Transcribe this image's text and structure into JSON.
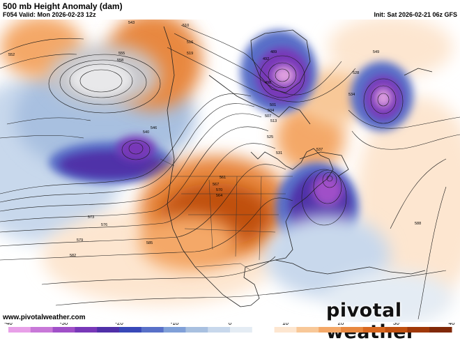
{
  "header": {
    "title": "500 mb Height Anomaly (dam)",
    "valid": "F054 Valid: Mon 2026-02-23 12z",
    "init": "Init: Sat 2026-02-21 06z GFS"
  },
  "footer": {
    "website": "www.pivotalweather.com",
    "brand": "pivotal weather"
  },
  "colorbar": {
    "ticks": [
      "-40",
      "-30",
      "-20",
      "-10",
      "0",
      "10",
      "20",
      "30",
      "40"
    ],
    "tick_values": [
      -40,
      -30,
      -20,
      -10,
      0,
      10,
      20,
      30,
      40
    ],
    "colors": [
      "#e8a0e8",
      "#c878d8",
      "#a050c8",
      "#7838b8",
      "#5030a8",
      "#3848b8",
      "#5870c8",
      "#80a0d8",
      "#a8c0e0",
      "#c8d8ec",
      "#e4ecf4",
      "#ffffff",
      "#fde6d0",
      "#f8c898",
      "#f4a868",
      "#e88840",
      "#d86820",
      "#c05010",
      "#a03808",
      "#802808"
    ]
  },
  "contour_labels": [
    "510",
    "516",
    "519",
    "543",
    "552",
    "561",
    "567",
    "570",
    "573",
    "576",
    "579",
    "582",
    "585",
    "588",
    "489",
    "492",
    "498",
    "501",
    "504",
    "507",
    "513",
    "525",
    "528",
    "531",
    "534",
    "537",
    "540",
    "546",
    "549",
    "555",
    "558",
    "564"
  ],
  "icons": [
    "contour-lines",
    "anomaly-shading",
    "coastlines",
    "state-borders"
  ],
  "colors": {
    "positive": "#d86820",
    "negative": "#5030a8",
    "neutral": "#ffffff"
  }
}
